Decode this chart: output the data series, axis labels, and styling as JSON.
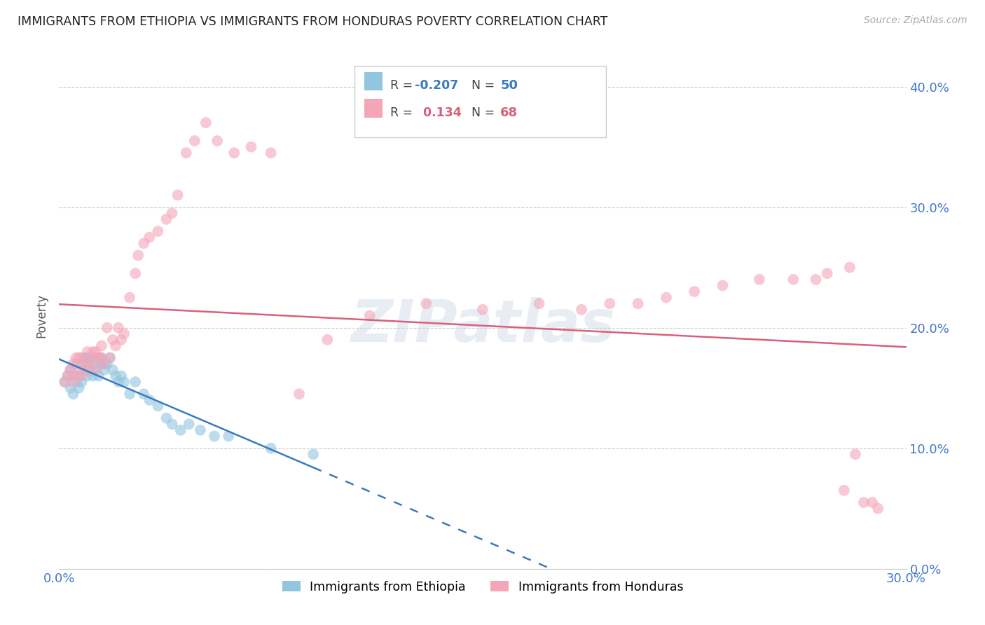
{
  "title": "IMMIGRANTS FROM ETHIOPIA VS IMMIGRANTS FROM HONDURAS POVERTY CORRELATION CHART",
  "source": "Source: ZipAtlas.com",
  "ylabel_label": "Poverty",
  "xlim": [
    0.0,
    0.3
  ],
  "ylim": [
    0.0,
    0.42
  ],
  "y_ticks": [
    0.0,
    0.1,
    0.2,
    0.3,
    0.4
  ],
  "color_blue": "#92c5de",
  "color_pink": "#f4a6b8",
  "line_blue": "#3a7abf",
  "line_pink": "#d9607a",
  "watermark": "ZIPatlas",
  "ethiopia_x": [
    0.002,
    0.003,
    0.004,
    0.004,
    0.005,
    0.005,
    0.006,
    0.006,
    0.007,
    0.007,
    0.008,
    0.008,
    0.009,
    0.009,
    0.01,
    0.01,
    0.01,
    0.011,
    0.011,
    0.012,
    0.012,
    0.013,
    0.013,
    0.014,
    0.014,
    0.015,
    0.015,
    0.016,
    0.016,
    0.017,
    0.018,
    0.019,
    0.02,
    0.021,
    0.022,
    0.023,
    0.025,
    0.027,
    0.03,
    0.032,
    0.035,
    0.038,
    0.04,
    0.043,
    0.046,
    0.05,
    0.055,
    0.06,
    0.075,
    0.09
  ],
  "ethiopia_y": [
    0.155,
    0.16,
    0.15,
    0.165,
    0.145,
    0.16,
    0.155,
    0.17,
    0.16,
    0.15,
    0.17,
    0.155,
    0.165,
    0.175,
    0.16,
    0.17,
    0.175,
    0.165,
    0.175,
    0.16,
    0.175,
    0.165,
    0.17,
    0.175,
    0.16,
    0.17,
    0.175,
    0.17,
    0.165,
    0.17,
    0.175,
    0.165,
    0.16,
    0.155,
    0.16,
    0.155,
    0.145,
    0.155,
    0.145,
    0.14,
    0.135,
    0.125,
    0.12,
    0.115,
    0.12,
    0.115,
    0.11,
    0.11,
    0.1,
    0.095
  ],
  "honduras_x": [
    0.002,
    0.003,
    0.004,
    0.005,
    0.005,
    0.006,
    0.006,
    0.007,
    0.007,
    0.008,
    0.008,
    0.009,
    0.01,
    0.01,
    0.011,
    0.012,
    0.012,
    0.013,
    0.013,
    0.014,
    0.015,
    0.015,
    0.016,
    0.017,
    0.018,
    0.019,
    0.02,
    0.021,
    0.022,
    0.023,
    0.025,
    0.027,
    0.028,
    0.03,
    0.032,
    0.035,
    0.038,
    0.04,
    0.042,
    0.045,
    0.048,
    0.052,
    0.056,
    0.062,
    0.068,
    0.075,
    0.085,
    0.095,
    0.11,
    0.13,
    0.15,
    0.17,
    0.185,
    0.195,
    0.205,
    0.215,
    0.225,
    0.235,
    0.248,
    0.26,
    0.268,
    0.272,
    0.278,
    0.28,
    0.282,
    0.285,
    0.288,
    0.29
  ],
  "honduras_y": [
    0.155,
    0.16,
    0.165,
    0.155,
    0.17,
    0.16,
    0.175,
    0.165,
    0.175,
    0.16,
    0.175,
    0.17,
    0.165,
    0.18,
    0.17,
    0.175,
    0.18,
    0.165,
    0.18,
    0.175,
    0.175,
    0.185,
    0.17,
    0.2,
    0.175,
    0.19,
    0.185,
    0.2,
    0.19,
    0.195,
    0.225,
    0.245,
    0.26,
    0.27,
    0.275,
    0.28,
    0.29,
    0.295,
    0.31,
    0.345,
    0.355,
    0.37,
    0.355,
    0.345,
    0.35,
    0.345,
    0.145,
    0.19,
    0.21,
    0.22,
    0.215,
    0.22,
    0.215,
    0.22,
    0.22,
    0.225,
    0.23,
    0.235,
    0.24,
    0.24,
    0.24,
    0.245,
    0.065,
    0.25,
    0.095,
    0.055,
    0.055,
    0.05
  ]
}
